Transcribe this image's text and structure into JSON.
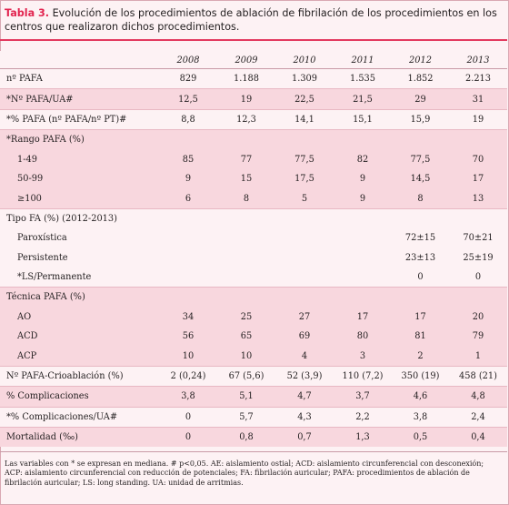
{
  "caption": {
    "label": "Tabla 3.",
    "text": " Evolución de los procedimientos de ablación de fibrilación de los procedimientos en los centros que realizaron dichos procedimientos."
  },
  "table": {
    "years": [
      "2008",
      "2009",
      "2010",
      "2011",
      "2012",
      "2013"
    ],
    "rows": [
      {
        "label": "nº PAFA",
        "indent": false,
        "shade": "white",
        "values": [
          "829",
          "1.188",
          "1.309",
          "1.535",
          "1.852",
          "2.213"
        ]
      },
      {
        "label": "*Nº PAFA/UA#",
        "indent": false,
        "shade": "pink",
        "values": [
          "12,5",
          "19",
          "22,5",
          "21,5",
          "29",
          "31"
        ]
      },
      {
        "label": "*% PAFA (nº PAFA/nº PT)#",
        "indent": false,
        "shade": "white",
        "values": [
          "8,8",
          "12,3",
          "14,1",
          "15,1",
          "15,9",
          "19"
        ]
      },
      {
        "label": "*Rango PAFA (%)",
        "indent": false,
        "shade": "pink",
        "values": [
          "",
          "",
          "",
          "",
          "",
          ""
        ]
      },
      {
        "label": "1-49",
        "indent": true,
        "shade": "pink",
        "values": [
          "85",
          "77",
          "77,5",
          "82",
          "77,5",
          "70"
        ]
      },
      {
        "label": "50-99",
        "indent": true,
        "shade": "pink",
        "values": [
          "9",
          "15",
          "17,5",
          "9",
          "14,5",
          "17"
        ]
      },
      {
        "label": "≥100",
        "indent": true,
        "shade": "pink",
        "values": [
          "6",
          "8",
          "5",
          "9",
          "8",
          "13"
        ]
      },
      {
        "label": "Tipo FA (%) (2012-2013)",
        "indent": false,
        "shade": "white",
        "values": [
          "",
          "",
          "",
          "",
          "",
          ""
        ]
      },
      {
        "label": "Paroxística",
        "indent": true,
        "shade": "white",
        "values": [
          "",
          "",
          "",
          "",
          "72±15",
          "70±21"
        ]
      },
      {
        "label": "Persistente",
        "indent": true,
        "shade": "white",
        "values": [
          "",
          "",
          "",
          "",
          "23±13",
          "25±19"
        ]
      },
      {
        "label": "*LS/Permanente",
        "indent": true,
        "shade": "white",
        "values": [
          "",
          "",
          "",
          "",
          "0",
          "0"
        ]
      },
      {
        "label": "Técnica PAFA (%)",
        "indent": false,
        "shade": "pink",
        "values": [
          "",
          "",
          "",
          "",
          "",
          ""
        ]
      },
      {
        "label": "AO",
        "indent": true,
        "shade": "pink",
        "values": [
          "34",
          "25",
          "27",
          "17",
          "17",
          "20"
        ]
      },
      {
        "label": "ACD",
        "indent": true,
        "shade": "pink",
        "values": [
          "56",
          "65",
          "69",
          "80",
          "81",
          "79"
        ]
      },
      {
        "label": "ACP",
        "indent": true,
        "shade": "pink",
        "values": [
          "10",
          "10",
          "4",
          "3",
          "2",
          "1"
        ]
      },
      {
        "label": "Nº PAFA-Crioablación (%)",
        "indent": false,
        "shade": "white",
        "values": [
          "2 (0,24)",
          "67 (5,6)",
          "52 (3,9)",
          "110 (7,2)",
          "350 (19)",
          "458 (21)"
        ]
      },
      {
        "label": "% Complicaciones",
        "indent": false,
        "shade": "pink",
        "values": [
          "3,8",
          "5,1",
          "4,7",
          "3,7",
          "4,6",
          "4,8"
        ]
      },
      {
        "label": "*% Complicaciones/UA#",
        "indent": false,
        "shade": "white",
        "values": [
          "0",
          "5,7",
          "4,3",
          "2,2",
          "3,8",
          "2,4"
        ]
      },
      {
        "label": "Mortalidad (‰)",
        "indent": false,
        "shade": "pink",
        "values": [
          "0",
          "0,8",
          "0,7",
          "1,3",
          "0,5",
          "0,4"
        ]
      }
    ]
  },
  "notes": "Las variables con * se expresan en mediana. # p<0,05. AE: aislamiento ostial; ACD: aislamiento circunferencial con desconexión; ACP: aislamiento circunferencial con reducción de potenciales; FA: fibrilación auricular; PAFA: procedimientos de ablación de fibrilación auricular; LS: long standing. UA: unidad de arritmias."
}
